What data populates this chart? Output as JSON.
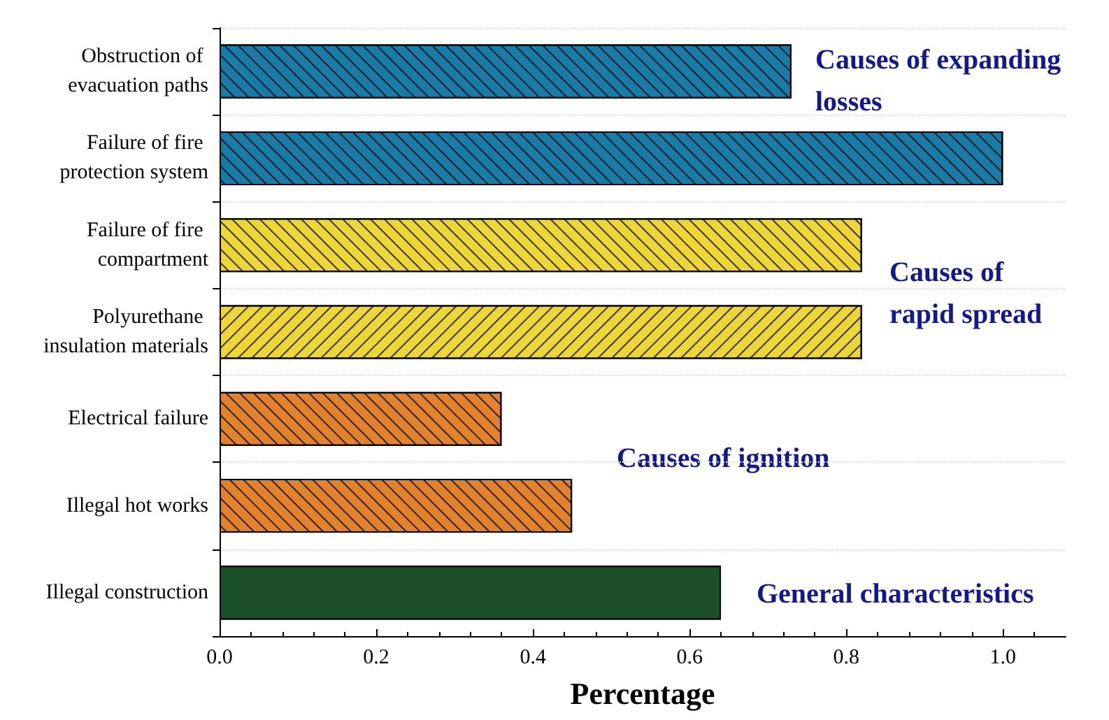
{
  "chart_data": {
    "type": "bar",
    "orientation": "horizontal",
    "xlabel": "Percentage",
    "categories": [
      "Obstruction of evacuation paths",
      "Failure of fire protection system",
      "Failure of fire compartment",
      "Polyurethane insulation materials",
      "Electrical failure",
      "Illegal hot works",
      "Illegal construction"
    ],
    "values": [
      0.73,
      1.0,
      0.82,
      0.82,
      0.36,
      0.45,
      0.64
    ],
    "colors": [
      "#1a7ba6",
      "#1a7ba6",
      "#ecd63a",
      "#ecd63a",
      "#e0822e",
      "#e0822e",
      "#1a4f2a"
    ],
    "xlim": [
      0,
      1.08
    ],
    "xticks": [
      {
        "value": 0,
        "label": "0.0"
      },
      0.2,
      0.4,
      0.6,
      0.8,
      {
        "value": 1,
        "label": "1.0"
      }
    ],
    "grid": "y",
    "annotations": [
      "Causes of expanding losses",
      "Causes of rapid spread",
      "Causes of ignition",
      "General characteristics"
    ]
  }
}
